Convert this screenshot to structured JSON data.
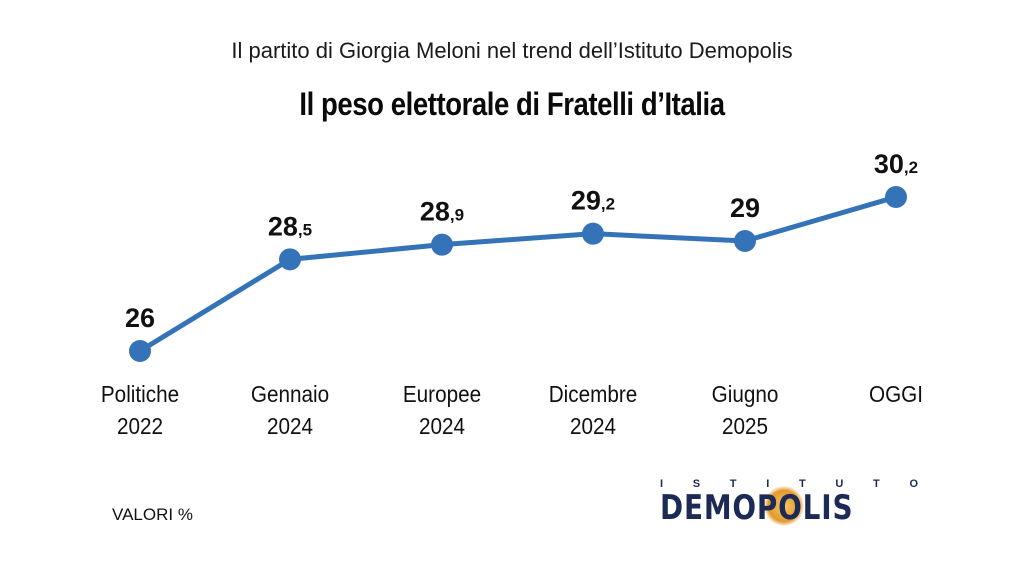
{
  "header": {
    "subtitle": "Il partito di Giorgia Meloni nel trend dell’Istituto Demopolis",
    "title": "Il peso elettorale di Fratelli d’Italia"
  },
  "footer": {
    "unit_note": "VALORI %",
    "logo": {
      "top_text": "ISTITUTO",
      "main_text": "DEMOPOLIS"
    }
  },
  "chart_data": {
    "type": "line",
    "categories": [
      [
        "Politiche",
        "2022"
      ],
      [
        "Gennaio",
        "2024"
      ],
      [
        "Europee",
        "2024"
      ],
      [
        "Dicembre",
        "2024"
      ],
      [
        "Giugno",
        "2025"
      ],
      [
        "OGGI"
      ]
    ],
    "series": [
      {
        "values": [
          26,
          28.5,
          28.9,
          29.2,
          29,
          30.2
        ]
      }
    ],
    "value_labels": [
      [
        "26",
        ""
      ],
      [
        "28",
        ",5"
      ],
      [
        "28",
        ",9"
      ],
      [
        "29",
        ",2"
      ],
      [
        "29",
        ""
      ],
      [
        "30",
        ",2"
      ]
    ],
    "line_color": "#3573b9",
    "grid": false,
    "legend": "none"
  }
}
